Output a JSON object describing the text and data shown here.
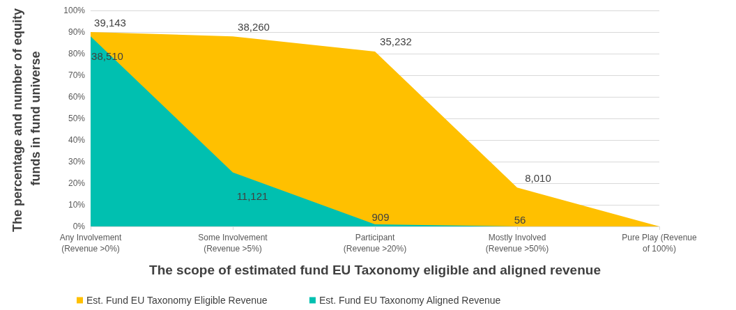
{
  "chart_data": {
    "type": "area",
    "xlabel": "The scope of estimated fund EU Taxonomy eligible and aligned revenue",
    "ylabel": "The percentage and number of equity funds in fund universe",
    "categories": [
      "Any Involvement\n(Revenue >0%)",
      "Some Involvement\n(Revenue >5%)",
      "Participant\n(Revenue >20%)",
      "Mostly Involved\n(Revenue >50%)",
      "Pure Play (Revenue\nof 100%)"
    ],
    "series": [
      {
        "name": "Est. Fund EU Taxonomy Eligible Revenue",
        "color": "#ffc000",
        "values": [
          90,
          88,
          81,
          18,
          0
        ]
      },
      {
        "name": "Est. Fund EU Taxonomy Aligned Revenue",
        "color": "#00c0b0",
        "values": [
          88,
          25,
          1,
          0,
          0
        ]
      }
    ],
    "annotations": [
      {
        "text": "39,143",
        "x": "Any Involvement\n(Revenue >0%)",
        "y": 90
      },
      {
        "text": "38,260",
        "x": "Some Involvement\n(Revenue >5%)",
        "y": 88
      },
      {
        "text": "35,232",
        "x": "Participant\n(Revenue >20%)",
        "y": 81
      },
      {
        "text": "8,010",
        "x": "Mostly Involved\n(Revenue >50%)",
        "y": 18
      },
      {
        "text": "38,510",
        "x": "Any Involvement\n(Revenue >0%)",
        "y": 88
      },
      {
        "text": "11,121",
        "x": "Some Involvement\n(Revenue >5%)",
        "y": 25
      },
      {
        "text": "909",
        "x": "Participant\n(Revenue >20%)",
        "y": 1
      },
      {
        "text": "56",
        "x": "Mostly Involved\n(Revenue >50%)",
        "y": 0
      }
    ],
    "ylim": [
      0,
      100
    ],
    "yticks": [
      {
        "value": 0,
        "label": "0%"
      },
      {
        "value": 10,
        "label": "10%"
      },
      {
        "value": 20,
        "label": "20%"
      },
      {
        "value": 30,
        "label": "30%"
      },
      {
        "value": 40,
        "label": "40%"
      },
      {
        "value": 50,
        "label": "50%"
      },
      {
        "value": 60,
        "label": "60%"
      },
      {
        "value": 70,
        "label": "70%"
      },
      {
        "value": 80,
        "label": "80%"
      },
      {
        "value": 90,
        "label": "90%"
      },
      {
        "value": 100,
        "label": "100%"
      }
    ],
    "grid": "y",
    "legend": "bottom",
    "marker": "none"
  }
}
